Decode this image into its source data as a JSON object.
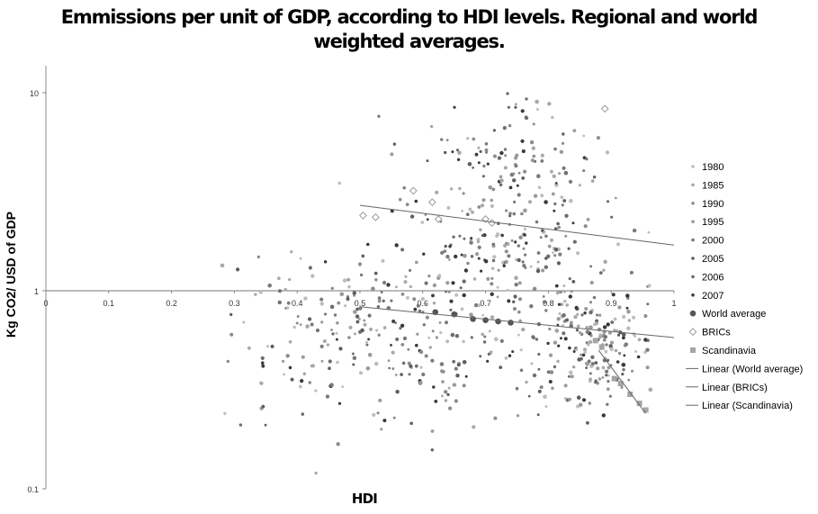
{
  "chart_data": {
    "type": "scatter",
    "title": [
      "Emmissions per unit of GDP, according to HDI levels.  Regional and world",
      "weighted averages."
    ],
    "xlabel": "HDI",
    "ylabel": "Kg CO2/ USD of GDP",
    "xlim": [
      0,
      1
    ],
    "ylim": [
      0.1,
      10
    ],
    "yscale": "log",
    "x_ticks": [
      "0",
      "0.1",
      "0.2",
      "0.3",
      "0.4",
      "0.5",
      "0.6",
      "0.7",
      "0.8",
      "0.9",
      "1"
    ],
    "y_ticks": [
      "10",
      "1",
      "0.1"
    ],
    "x_axis_crosses_y_at": 1,
    "grid": false,
    "legend_position": "right",
    "legend": [
      {
        "label": "1980",
        "marker": "dot",
        "color": "#bdbdbd"
      },
      {
        "label": "1985",
        "marker": "dot",
        "color": "#a8a8a8"
      },
      {
        "label": "1990",
        "marker": "dot",
        "color": "#8c8c8c"
      },
      {
        "label": "1995",
        "marker": "dot",
        "color": "#9a9a9a"
      },
      {
        "label": "2000",
        "marker": "dot",
        "color": "#7a7a7a"
      },
      {
        "label": "2005",
        "marker": "dot",
        "color": "#5e5e5e"
      },
      {
        "label": "2006",
        "marker": "dot",
        "color": "#6e6e6e"
      },
      {
        "label": "2007",
        "marker": "dot",
        "color": "#3a3a3a"
      },
      {
        "label": "World average",
        "marker": "big-dot",
        "color": "#555555"
      },
      {
        "label": "BRICs",
        "marker": "diamond",
        "color": "#9a9a9a"
      },
      {
        "label": "Scandinavia",
        "marker": "square",
        "color": "#a5a5a5"
      },
      {
        "label": "Linear (World average)",
        "marker": "line",
        "color": "#666666"
      },
      {
        "label": "Linear (BRICs)",
        "marker": "line",
        "color": "#666666"
      },
      {
        "label": "Linear (Scandinavia)",
        "marker": "line",
        "color": "#666666"
      }
    ],
    "series": [
      {
        "name": "World average",
        "points": [
          [
            0.62,
            0.78
          ],
          [
            0.65,
            0.76
          ],
          [
            0.68,
            0.72
          ],
          [
            0.7,
            0.71
          ],
          [
            0.72,
            0.7
          ],
          [
            0.74,
            0.69
          ]
        ]
      },
      {
        "name": "BRICs",
        "points": [
          [
            0.505,
            2.4
          ],
          [
            0.525,
            2.35
          ],
          [
            0.585,
            3.2
          ],
          [
            0.615,
            2.8
          ],
          [
            0.625,
            2.3
          ],
          [
            0.7,
            2.3
          ],
          [
            0.71,
            2.2
          ],
          [
            0.89,
            8.3
          ]
        ]
      },
      {
        "name": "Scandinavia",
        "points": [
          [
            0.875,
            0.56
          ],
          [
            0.885,
            0.52
          ],
          [
            0.905,
            0.36
          ],
          [
            0.915,
            0.34
          ],
          [
            0.93,
            0.3
          ],
          [
            0.945,
            0.27
          ],
          [
            0.955,
            0.25
          ]
        ]
      },
      {
        "name": "Linear (World average)",
        "type": "line",
        "points": [
          [
            0.5,
            0.83
          ],
          [
            1.0,
            0.58
          ]
        ]
      },
      {
        "name": "Linear (BRICs)",
        "type": "line",
        "points": [
          [
            0.5,
            2.7
          ],
          [
            1.0,
            1.7
          ]
        ]
      },
      {
        "name": "Linear (Scandinavia)",
        "type": "line",
        "points": [
          [
            0.88,
            0.5
          ],
          [
            0.955,
            0.24
          ]
        ]
      }
    ],
    "country_scatter": {
      "note_series": [
        "1980",
        "1985",
        "1990",
        "1995",
        "2000",
        "2005",
        "2006",
        "2007"
      ],
      "clusters": [
        {
          "cx": 0.5,
          "cy": 0.65,
          "sx": 0.11,
          "sy": 0.22,
          "n": 170
        },
        {
          "cx": 0.74,
          "cy": 1.6,
          "sx": 0.09,
          "sy": 0.28,
          "n": 260
        },
        {
          "cx": 0.88,
          "cy": 0.55,
          "sx": 0.05,
          "sy": 0.18,
          "n": 190
        },
        {
          "cx": 0.75,
          "cy": 4.5,
          "sx": 0.06,
          "sy": 0.16,
          "n": 70
        },
        {
          "cx": 0.62,
          "cy": 0.42,
          "sx": 0.1,
          "sy": 0.16,
          "n": 90
        }
      ],
      "outliers": [
        [
          0.53,
          7.6
        ],
        [
          0.555,
          5.5
        ],
        [
          0.63,
          5.8
        ],
        [
          0.735,
          9.9
        ],
        [
          0.765,
          9.3
        ],
        [
          0.445,
          1.4
        ],
        [
          0.43,
          0.12
        ],
        [
          0.31,
          0.21
        ],
        [
          0.285,
          0.24
        ],
        [
          0.29,
          0.44
        ]
      ]
    }
  }
}
